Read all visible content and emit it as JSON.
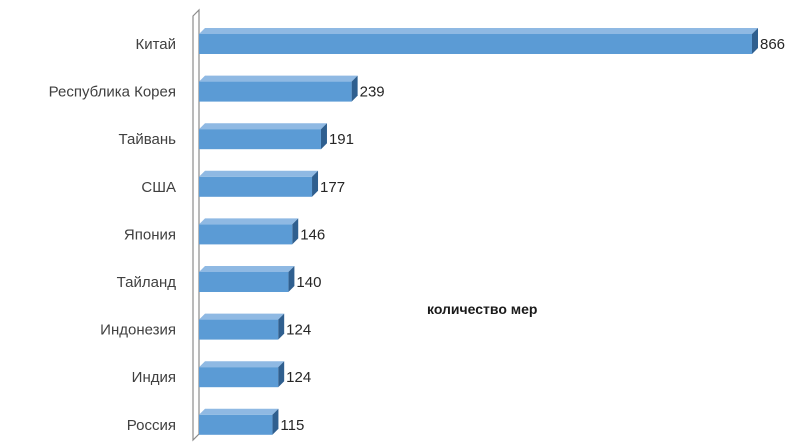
{
  "chart_data": {
    "type": "bar",
    "orientation": "horizontal",
    "three_d": true,
    "categories": [
      "Китай",
      "Республика Корея",
      "Тайвань",
      "США",
      "Япония",
      "Тайланд",
      "Индонезия",
      "Индия",
      "Россия"
    ],
    "series": [
      {
        "name": "количество мер",
        "values": [
          866,
          239,
          191,
          177,
          146,
          140,
          124,
          124,
          115
        ]
      }
    ],
    "value_labels": [
      "866",
      "239",
      "191",
      "177",
      "146",
      "140",
      "124",
      "124",
      "115"
    ],
    "title": "",
    "xlabel": "",
    "ylabel": "",
    "xlim": [
      0,
      866
    ],
    "grid": false,
    "legend_position": "right",
    "colors": {
      "bar_front": "#5b9bd5",
      "bar_top": "#8fb9e3",
      "bar_side": "#2f5f8f",
      "axis": "#8c8c8c"
    }
  }
}
